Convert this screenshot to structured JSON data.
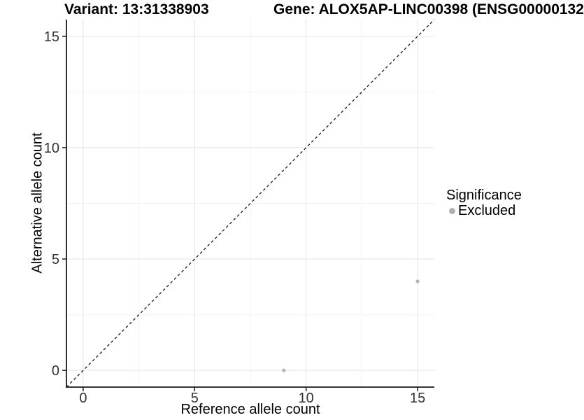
{
  "chart_data": {
    "type": "scatter",
    "title_left": "Variant: 13:31338903",
    "title_right": "Gene: ALOX5AP-LINC00398 (ENSG00000132",
    "xlabel": "Reference allele count",
    "ylabel": "Alternative allele count",
    "xlim": [
      -0.75,
      15.75
    ],
    "ylim": [
      -0.75,
      15.75
    ],
    "major_ticks": [
      0,
      5,
      10,
      15
    ],
    "minor_ticks": [
      2.5,
      7.5,
      12.5
    ],
    "grid": "major+minor",
    "points": [
      {
        "x": 9,
        "y": 0,
        "significance": "Excluded"
      },
      {
        "x": 15,
        "y": 4,
        "significance": "Excluded"
      }
    ],
    "identity_line": {
      "style": "dashed",
      "from": [
        -0.75,
        -0.75
      ],
      "to": [
        15.75,
        15.75
      ]
    },
    "legend": {
      "title": "Significance",
      "position": "right",
      "items": [
        {
          "label": "Excluded",
          "color": "#b0b0b0"
        }
      ]
    },
    "colors": {
      "point": "#b5b5b5",
      "grid_major": "#e8e8e8",
      "grid_minor": "#f3f3f3",
      "axis_line": "#1a1a1a",
      "dashed_line": "#1a1a1a",
      "tick_text": "#333333",
      "background": "#ffffff"
    }
  }
}
